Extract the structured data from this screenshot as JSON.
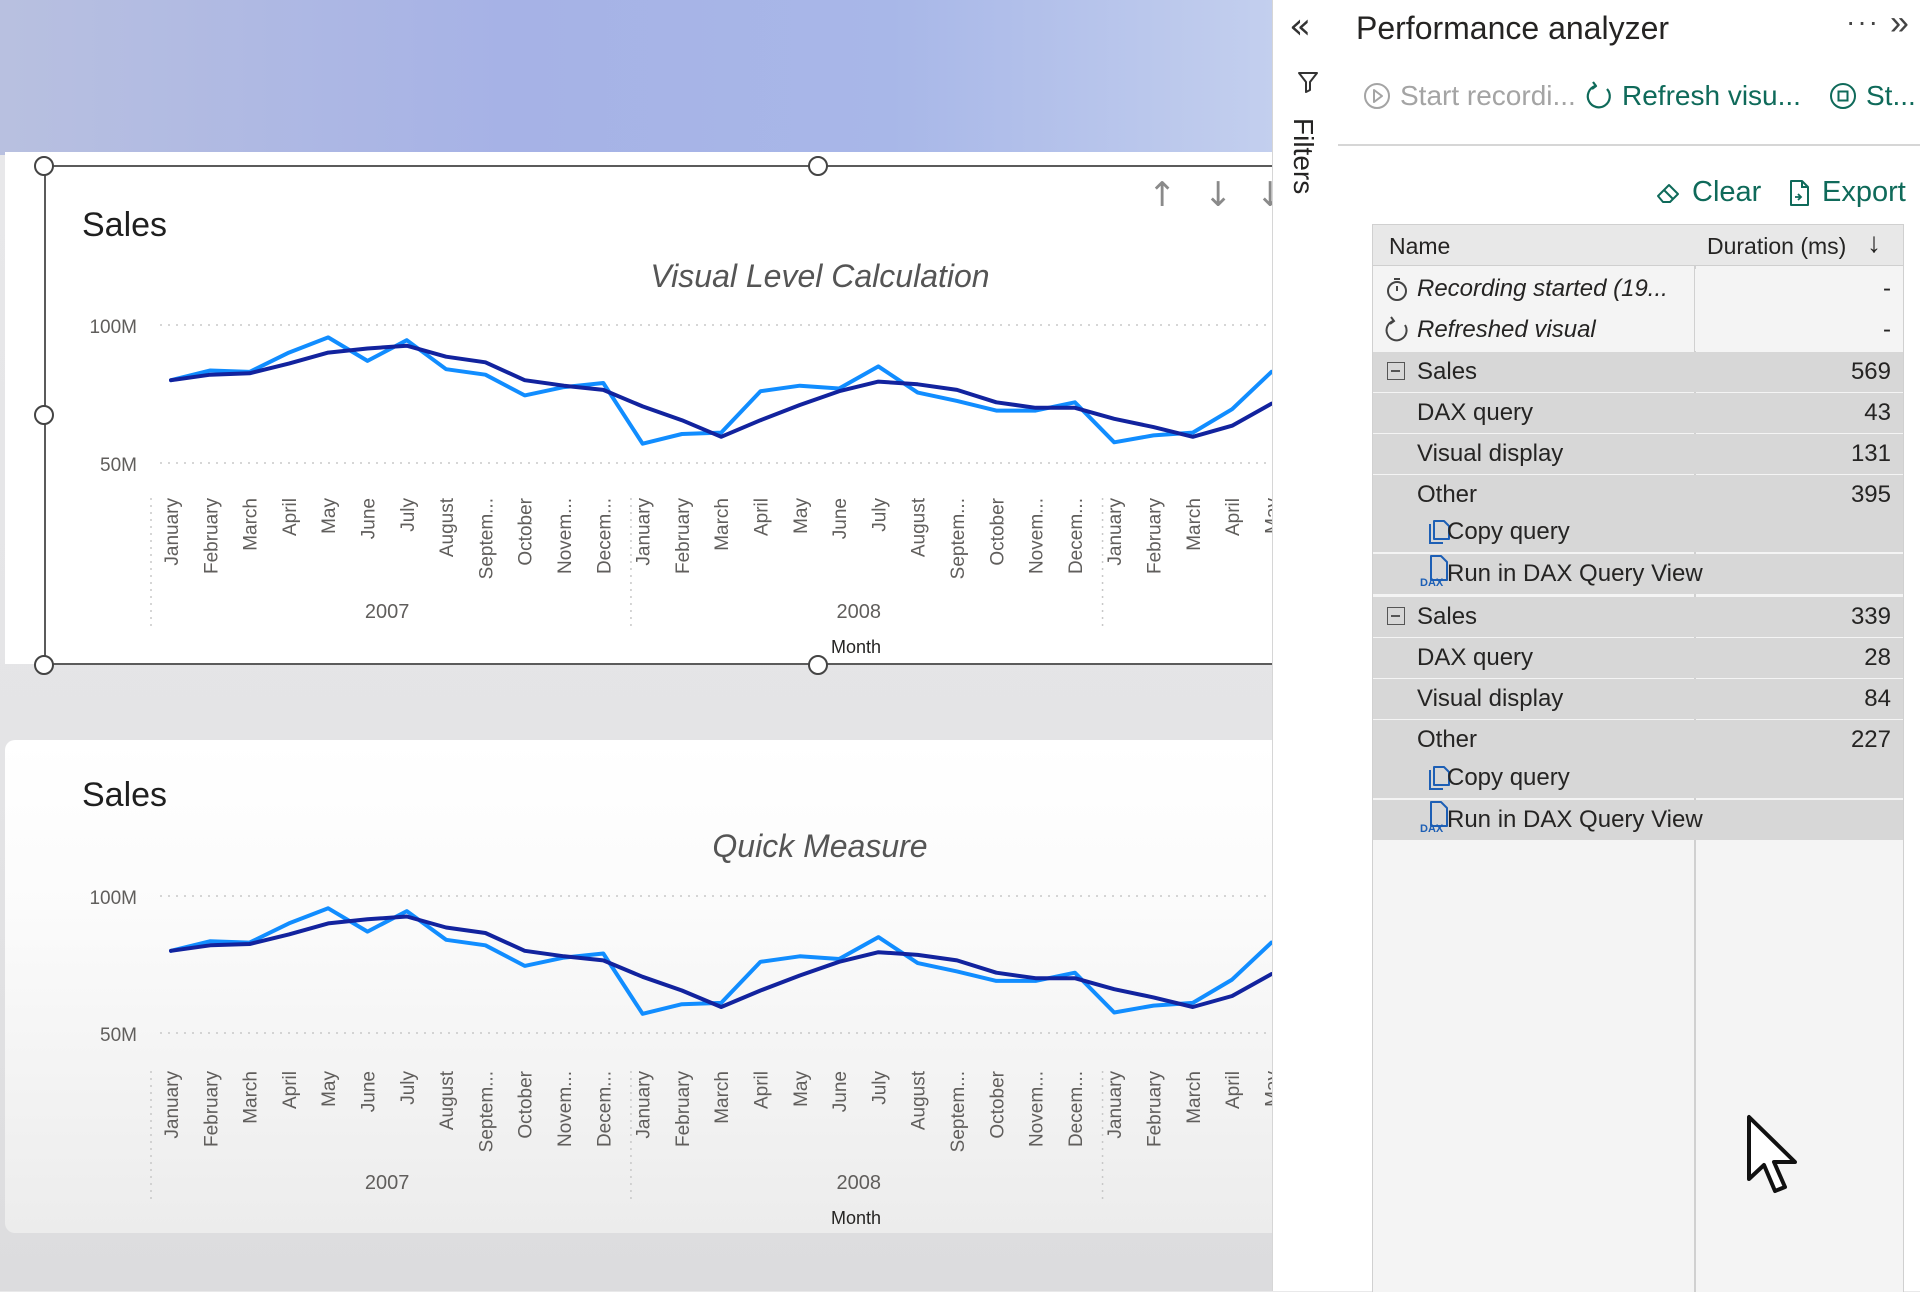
{
  "filters_pane": {
    "label": "Filters",
    "collapse_icon": "double-chevron-left-icon",
    "filter_icon": "funnel-icon"
  },
  "visual_header_icons": [
    "arrow-up-icon",
    "arrow-down-icon",
    "drill-down-icon"
  ],
  "visuals": [
    {
      "title": "Sales",
      "subtitle": "Visual Level Calculation",
      "y_ticks": [
        "100M",
        "50M"
      ],
      "x_label": "Month",
      "years": [
        "2007",
        "2008"
      ],
      "months": [
        "January",
        "February",
        "March",
        "April",
        "May",
        "June",
        "July",
        "August",
        "Septem...",
        "October",
        "Novem...",
        "Decem...",
        "January",
        "February",
        "March",
        "April",
        "May",
        "June",
        "July",
        "August",
        "Septem...",
        "October",
        "Novem...",
        "Decem...",
        "January",
        "February",
        "March",
        "April",
        "May"
      ]
    },
    {
      "title": "Sales",
      "subtitle": "Quick Measure",
      "y_ticks": [
        "100M",
        "50M"
      ],
      "x_label": "Month",
      "years": [
        "2007",
        "2008"
      ],
      "months": [
        "January",
        "February",
        "March",
        "April",
        "May",
        "June",
        "July",
        "August",
        "Septem...",
        "October",
        "Novem...",
        "Decem...",
        "January",
        "February",
        "March",
        "April",
        "May",
        "June",
        "July",
        "August",
        "Septem...",
        "October",
        "Novem...",
        "Decem...",
        "January",
        "February",
        "March",
        "April",
        "May"
      ]
    }
  ],
  "chart_data": [
    {
      "type": "line",
      "title": "Sales",
      "subtitle": "Visual Level Calculation",
      "xlabel": "Month",
      "ylabel": "",
      "ylim": [
        40,
        110
      ],
      "y_unit": "M",
      "categories": [
        "2007-01",
        "2007-02",
        "2007-03",
        "2007-04",
        "2007-05",
        "2007-06",
        "2007-07",
        "2007-08",
        "2007-09",
        "2007-10",
        "2007-11",
        "2007-12",
        "2008-01",
        "2008-02",
        "2008-03",
        "2008-04",
        "2008-05",
        "2008-06",
        "2008-07",
        "2008-08",
        "2008-09",
        "2008-10",
        "2008-11",
        "2008-12",
        "2009-01",
        "2009-02",
        "2009-03",
        "2009-04",
        "2009-05"
      ],
      "series": [
        {
          "color": "#118dff",
          "values": [
            80,
            83.5,
            83,
            90,
            95.5,
            87,
            94.5,
            84,
            82,
            74.5,
            77.5,
            79,
            57,
            60.5,
            61,
            76,
            78,
            77,
            85,
            75.5,
            72.5,
            69,
            69,
            72,
            57.5,
            60,
            61,
            69.5,
            83
          ]
        },
        {
          "color": "#12239e",
          "values": [
            80,
            82,
            82.5,
            86,
            90,
            91.5,
            92.5,
            88.5,
            86.5,
            80,
            78,
            76.5,
            70.5,
            65.5,
            59.5,
            65.5,
            71,
            76,
            79.5,
            78.5,
            76.5,
            72,
            70,
            70,
            66,
            63,
            59.5,
            63.5,
            71.5
          ]
        }
      ],
      "grid": true,
      "legend": "none"
    },
    {
      "type": "line",
      "title": "Sales",
      "subtitle": "Quick Measure",
      "xlabel": "Month",
      "ylabel": "",
      "ylim": [
        40,
        110
      ],
      "y_unit": "M",
      "categories": [
        "2007-01",
        "2007-02",
        "2007-03",
        "2007-04",
        "2007-05",
        "2007-06",
        "2007-07",
        "2007-08",
        "2007-09",
        "2007-10",
        "2007-11",
        "2007-12",
        "2008-01",
        "2008-02",
        "2008-03",
        "2008-04",
        "2008-05",
        "2008-06",
        "2008-07",
        "2008-08",
        "2008-09",
        "2008-10",
        "2008-11",
        "2008-12",
        "2009-01",
        "2009-02",
        "2009-03",
        "2009-04",
        "2009-05"
      ],
      "series": [
        {
          "color": "#118dff",
          "values": [
            80,
            83.5,
            83,
            90,
            95.5,
            87,
            94.5,
            84,
            82,
            74.5,
            77.5,
            79,
            57,
            60.5,
            61,
            76,
            78,
            77,
            85,
            75.5,
            72.5,
            69,
            69,
            72,
            57.5,
            60,
            61,
            69.5,
            83
          ]
        },
        {
          "color": "#12239e",
          "values": [
            80,
            82,
            82.5,
            86,
            90,
            91.5,
            92.5,
            88.5,
            86.5,
            80,
            78,
            76.5,
            70.5,
            65.5,
            59.5,
            65.5,
            71,
            76,
            79.5,
            78.5,
            76.5,
            72,
            70,
            70,
            66,
            63,
            59.5,
            63.5,
            71.5
          ]
        }
      ],
      "grid": true,
      "legend": "none"
    }
  ],
  "performance_analyzer": {
    "title": "Performance analyzer",
    "more_label": "···",
    "expand_icon": "chevron-right-icon",
    "toolbar": {
      "start_recording": "Start recordi...",
      "refresh_visuals": "Refresh visu...",
      "stop": "St..."
    },
    "actions": {
      "clear": "Clear",
      "export": "Export"
    },
    "columns": {
      "name": "Name",
      "duration": "Duration (ms)"
    },
    "rows": [
      {
        "kind": "event",
        "icon": "stopwatch-icon",
        "name": "Recording started (19...",
        "duration": "-"
      },
      {
        "kind": "event",
        "icon": "refresh-icon",
        "name": "Refreshed visual",
        "duration": "-"
      },
      {
        "kind": "group",
        "name": "Sales",
        "duration": "569"
      },
      {
        "kind": "child",
        "name": "DAX query",
        "duration": "43"
      },
      {
        "kind": "child",
        "name": "Visual display",
        "duration": "131"
      },
      {
        "kind": "child",
        "name": "Other",
        "duration": "395"
      },
      {
        "kind": "link",
        "icon": "copy-icon",
        "name": "Copy query"
      },
      {
        "kind": "link",
        "icon": "dax-file-icon",
        "name": "Run in DAX Query View"
      },
      {
        "kind": "group",
        "name": "Sales",
        "duration": "339"
      },
      {
        "kind": "child",
        "name": "DAX query",
        "duration": "28"
      },
      {
        "kind": "child",
        "name": "Visual display",
        "duration": "84"
      },
      {
        "kind": "child",
        "name": "Other",
        "duration": "227"
      },
      {
        "kind": "link",
        "icon": "copy-icon",
        "name": "Copy query"
      },
      {
        "kind": "link",
        "icon": "dax-file-icon",
        "name": "Run in DAX Query View"
      }
    ]
  },
  "colors": {
    "accent_teal": "#0f6a5a",
    "link_blue": "#1d5fb5",
    "series_light": "#118dff",
    "series_dark": "#12239e"
  }
}
